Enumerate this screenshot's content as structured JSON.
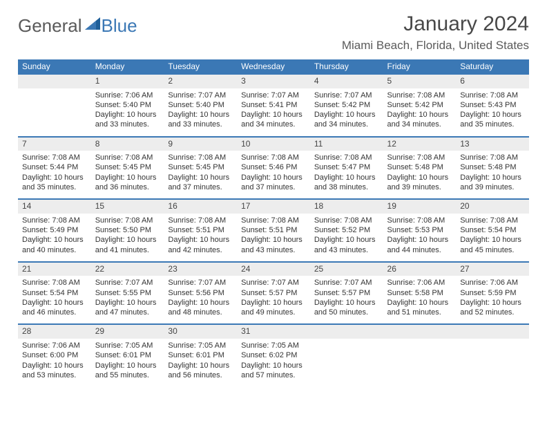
{
  "logo": {
    "part1": "General",
    "part2": "Blue"
  },
  "title": "January 2024",
  "location": "Miami Beach, Florida, United States",
  "header_color": "#3b78b5",
  "header_text_color": "#ffffff",
  "daynum_bg": "#ededed",
  "border_color": "#3b78b5",
  "daynames": [
    "Sunday",
    "Monday",
    "Tuesday",
    "Wednesday",
    "Thursday",
    "Friday",
    "Saturday"
  ],
  "labels": {
    "sunrise": "Sunrise:",
    "sunset": "Sunset:",
    "daylight": "Daylight:"
  },
  "weeks": [
    [
      null,
      {
        "n": "1",
        "sr": "7:06 AM",
        "ss": "5:40 PM",
        "dl": "10 hours and 33 minutes."
      },
      {
        "n": "2",
        "sr": "7:07 AM",
        "ss": "5:40 PM",
        "dl": "10 hours and 33 minutes."
      },
      {
        "n": "3",
        "sr": "7:07 AM",
        "ss": "5:41 PM",
        "dl": "10 hours and 34 minutes."
      },
      {
        "n": "4",
        "sr": "7:07 AM",
        "ss": "5:42 PM",
        "dl": "10 hours and 34 minutes."
      },
      {
        "n": "5",
        "sr": "7:08 AM",
        "ss": "5:42 PM",
        "dl": "10 hours and 34 minutes."
      },
      {
        "n": "6",
        "sr": "7:08 AM",
        "ss": "5:43 PM",
        "dl": "10 hours and 35 minutes."
      }
    ],
    [
      {
        "n": "7",
        "sr": "7:08 AM",
        "ss": "5:44 PM",
        "dl": "10 hours and 35 minutes."
      },
      {
        "n": "8",
        "sr": "7:08 AM",
        "ss": "5:45 PM",
        "dl": "10 hours and 36 minutes."
      },
      {
        "n": "9",
        "sr": "7:08 AM",
        "ss": "5:45 PM",
        "dl": "10 hours and 37 minutes."
      },
      {
        "n": "10",
        "sr": "7:08 AM",
        "ss": "5:46 PM",
        "dl": "10 hours and 37 minutes."
      },
      {
        "n": "11",
        "sr": "7:08 AM",
        "ss": "5:47 PM",
        "dl": "10 hours and 38 minutes."
      },
      {
        "n": "12",
        "sr": "7:08 AM",
        "ss": "5:48 PM",
        "dl": "10 hours and 39 minutes."
      },
      {
        "n": "13",
        "sr": "7:08 AM",
        "ss": "5:48 PM",
        "dl": "10 hours and 39 minutes."
      }
    ],
    [
      {
        "n": "14",
        "sr": "7:08 AM",
        "ss": "5:49 PM",
        "dl": "10 hours and 40 minutes."
      },
      {
        "n": "15",
        "sr": "7:08 AM",
        "ss": "5:50 PM",
        "dl": "10 hours and 41 minutes."
      },
      {
        "n": "16",
        "sr": "7:08 AM",
        "ss": "5:51 PM",
        "dl": "10 hours and 42 minutes."
      },
      {
        "n": "17",
        "sr": "7:08 AM",
        "ss": "5:51 PM",
        "dl": "10 hours and 43 minutes."
      },
      {
        "n": "18",
        "sr": "7:08 AM",
        "ss": "5:52 PM",
        "dl": "10 hours and 43 minutes."
      },
      {
        "n": "19",
        "sr": "7:08 AM",
        "ss": "5:53 PM",
        "dl": "10 hours and 44 minutes."
      },
      {
        "n": "20",
        "sr": "7:08 AM",
        "ss": "5:54 PM",
        "dl": "10 hours and 45 minutes."
      }
    ],
    [
      {
        "n": "21",
        "sr": "7:08 AM",
        "ss": "5:54 PM",
        "dl": "10 hours and 46 minutes."
      },
      {
        "n": "22",
        "sr": "7:07 AM",
        "ss": "5:55 PM",
        "dl": "10 hours and 47 minutes."
      },
      {
        "n": "23",
        "sr": "7:07 AM",
        "ss": "5:56 PM",
        "dl": "10 hours and 48 minutes."
      },
      {
        "n": "24",
        "sr": "7:07 AM",
        "ss": "5:57 PM",
        "dl": "10 hours and 49 minutes."
      },
      {
        "n": "25",
        "sr": "7:07 AM",
        "ss": "5:57 PM",
        "dl": "10 hours and 50 minutes."
      },
      {
        "n": "26",
        "sr": "7:06 AM",
        "ss": "5:58 PM",
        "dl": "10 hours and 51 minutes."
      },
      {
        "n": "27",
        "sr": "7:06 AM",
        "ss": "5:59 PM",
        "dl": "10 hours and 52 minutes."
      }
    ],
    [
      {
        "n": "28",
        "sr": "7:06 AM",
        "ss": "6:00 PM",
        "dl": "10 hours and 53 minutes."
      },
      {
        "n": "29",
        "sr": "7:05 AM",
        "ss": "6:01 PM",
        "dl": "10 hours and 55 minutes."
      },
      {
        "n": "30",
        "sr": "7:05 AM",
        "ss": "6:01 PM",
        "dl": "10 hours and 56 minutes."
      },
      {
        "n": "31",
        "sr": "7:05 AM",
        "ss": "6:02 PM",
        "dl": "10 hours and 57 minutes."
      },
      null,
      null,
      null
    ]
  ]
}
